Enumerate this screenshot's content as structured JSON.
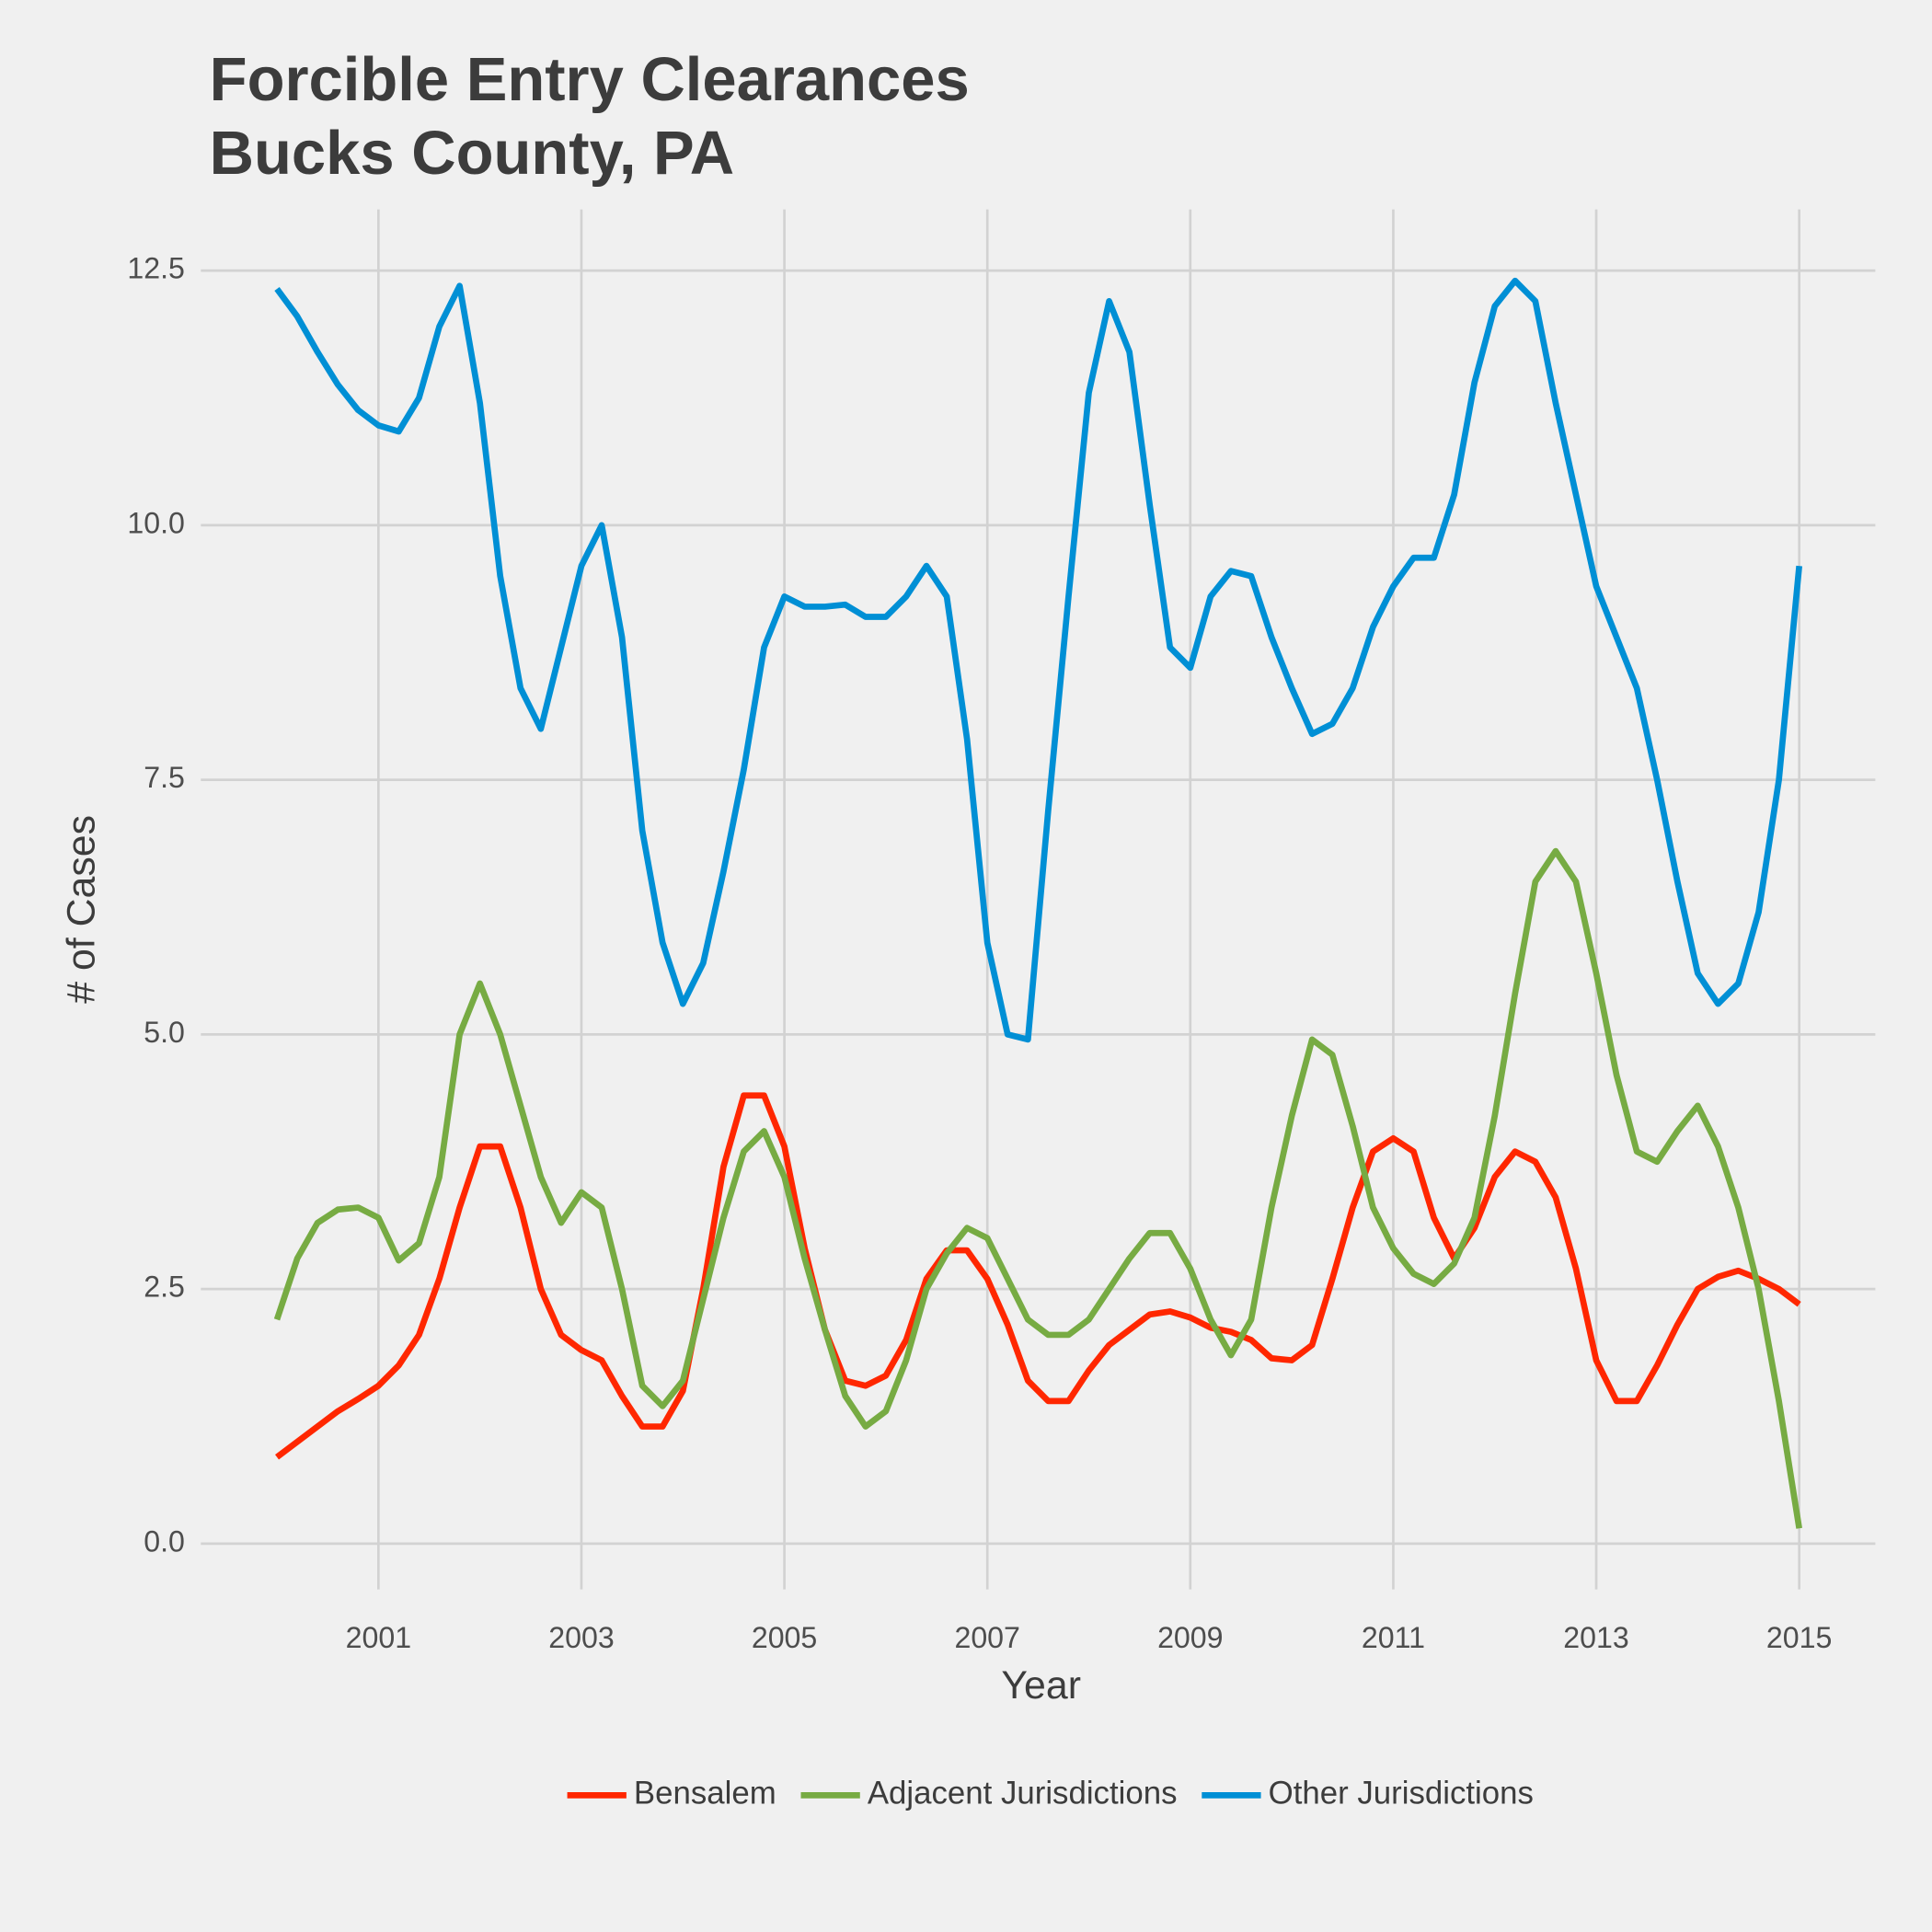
{
  "chart_data": {
    "type": "line",
    "title": "Forcible Entry Clearances",
    "subtitle": "Bucks County, PA",
    "x_label": "Year",
    "y_label": "# of Cases",
    "x": [
      2000.0,
      2000.2,
      2000.4,
      2000.6,
      2000.8,
      2001.0,
      2001.2,
      2001.4,
      2001.6,
      2001.8,
      2002.0,
      2002.2,
      2002.4,
      2002.6,
      2002.8,
      2003.0,
      2003.2,
      2003.4,
      2003.6,
      2003.8,
      2004.0,
      2004.2,
      2004.4,
      2004.6,
      2004.8,
      2005.0,
      2005.2,
      2005.4,
      2005.6,
      2005.8,
      2006.0,
      2006.2,
      2006.4,
      2006.6,
      2006.8,
      2007.0,
      2007.2,
      2007.4,
      2007.6,
      2007.8,
      2008.0,
      2008.2,
      2008.4,
      2008.6,
      2008.8,
      2009.0,
      2009.2,
      2009.4,
      2009.6,
      2009.8,
      2010.0,
      2010.2,
      2010.4,
      2010.6,
      2010.8,
      2011.0,
      2011.2,
      2011.4,
      2011.6,
      2011.8,
      2012.0,
      2012.2,
      2012.4,
      2012.6,
      2012.8,
      2013.0,
      2013.2,
      2013.4,
      2013.6,
      2013.8,
      2014.0,
      2014.2,
      2014.4,
      2014.6,
      2014.8,
      2015.0
    ],
    "series": [
      {
        "name": "Bensalem",
        "color": "#ff2700",
        "values": [
          0.85,
          1.0,
          1.15,
          1.3,
          1.42,
          1.55,
          1.75,
          2.05,
          2.6,
          3.3,
          3.9,
          3.9,
          3.3,
          2.5,
          2.05,
          1.9,
          1.8,
          1.45,
          1.15,
          1.15,
          1.5,
          2.5,
          3.7,
          4.4,
          4.4,
          3.9,
          2.9,
          2.1,
          1.6,
          1.55,
          1.65,
          2.0,
          2.6,
          2.88,
          2.88,
          2.6,
          2.15,
          1.6,
          1.4,
          1.4,
          1.7,
          1.95,
          2.1,
          2.25,
          2.28,
          2.22,
          2.12,
          2.08,
          2.0,
          1.82,
          1.8,
          1.95,
          2.6,
          3.3,
          3.85,
          3.98,
          3.85,
          3.2,
          2.8,
          3.1,
          3.6,
          3.85,
          3.75,
          3.4,
          2.7,
          1.8,
          1.4,
          1.4,
          1.75,
          2.15,
          2.5,
          2.62,
          2.68,
          2.6,
          2.5,
          2.35
        ]
      },
      {
        "name": "Adjacent Jurisdictions",
        "color": "#77ab43",
        "values": [
          2.2,
          2.8,
          3.15,
          3.28,
          3.3,
          3.2,
          2.78,
          2.95,
          3.6,
          5.0,
          5.5,
          5.0,
          4.3,
          3.6,
          3.15,
          3.45,
          3.3,
          2.5,
          1.55,
          1.35,
          1.6,
          2.4,
          3.2,
          3.85,
          4.05,
          3.6,
          2.8,
          2.1,
          1.45,
          1.15,
          1.3,
          1.8,
          2.5,
          2.85,
          3.1,
          3.0,
          2.6,
          2.2,
          2.05,
          2.05,
          2.2,
          2.5,
          2.8,
          3.05,
          3.05,
          2.7,
          2.2,
          1.85,
          2.2,
          3.3,
          4.2,
          4.95,
          4.8,
          4.1,
          3.3,
          2.9,
          2.65,
          2.55,
          2.75,
          3.2,
          4.2,
          5.4,
          6.5,
          6.8,
          6.5,
          5.6,
          4.6,
          3.85,
          3.75,
          4.05,
          4.3,
          3.9,
          3.3,
          2.5,
          1.4,
          0.15
        ]
      },
      {
        "name": "Other Jurisdictions",
        "color": "#008fd5",
        "values": [
          12.32,
          12.05,
          11.7,
          11.38,
          11.13,
          10.98,
          10.92,
          11.25,
          11.95,
          12.35,
          11.2,
          9.5,
          8.4,
          8.0,
          8.8,
          9.6,
          10.0,
          8.9,
          7.0,
          5.9,
          5.3,
          5.7,
          6.6,
          7.6,
          8.8,
          9.3,
          9.2,
          9.2,
          9.22,
          9.1,
          9.1,
          9.3,
          9.6,
          9.3,
          7.9,
          5.9,
          5.0,
          4.95,
          7.2,
          9.3,
          11.3,
          12.2,
          11.7,
          10.2,
          8.8,
          8.6,
          9.3,
          9.55,
          9.5,
          8.9,
          8.4,
          7.95,
          8.05,
          8.4,
          9.0,
          9.4,
          9.68,
          9.68,
          10.3,
          11.4,
          12.15,
          12.4,
          12.2,
          11.2,
          10.3,
          9.4,
          8.9,
          8.4,
          7.5,
          6.5,
          5.6,
          5.3,
          5.5,
          6.2,
          7.5,
          9.6
        ]
      }
    ],
    "xlim": [
      1999.25,
      2015.75
    ],
    "xticks": [
      2001,
      2003,
      2005,
      2007,
      2009,
      2011,
      2013,
      2015
    ],
    "ylim": [
      -0.45,
      13.1
    ],
    "yticks": [
      {
        "value": 0,
        "label": "0.0"
      },
      {
        "value": 2.5,
        "label": "2.5"
      },
      {
        "value": 5,
        "label": "5.0"
      },
      {
        "value": 7.5,
        "label": "7.5"
      },
      {
        "value": 10,
        "label": "10.0"
      },
      {
        "value": 12.5,
        "label": "12.5"
      }
    ],
    "grid": true,
    "legend": "bottom"
  }
}
